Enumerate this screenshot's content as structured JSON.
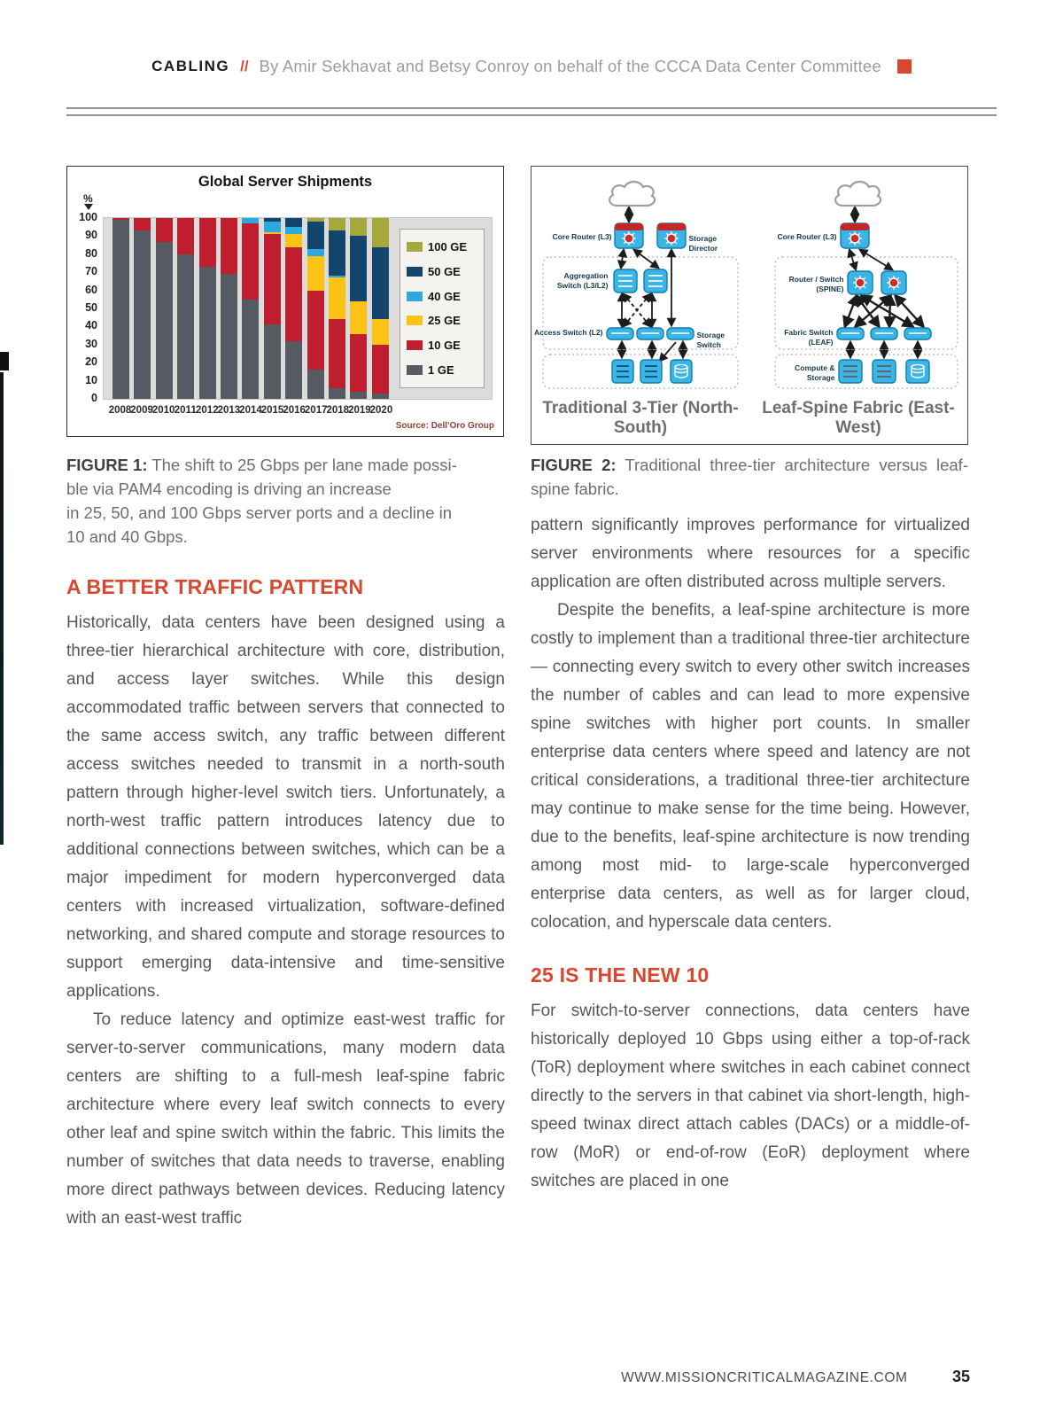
{
  "colors": {
    "accent": "#d9472f",
    "body_text": "#55565a"
  },
  "header": {
    "kicker": "CABLING",
    "slashes": "//",
    "byline": "By Amir Sekhavat and Betsy Conroy on behalf of the CCCA Data Center Committee"
  },
  "chart_data": {
    "type": "bar",
    "stacked": true,
    "title": "Global Server Shipments",
    "ylabel": "%",
    "ylim": [
      0,
      100
    ],
    "ytick_step": 10,
    "grid": false,
    "legend_position": "right",
    "categories": [
      "2008",
      "2009",
      "2010",
      "2011",
      "2012",
      "2013",
      "2014",
      "2015",
      "2016",
      "2017",
      "2018",
      "2019",
      "2020"
    ],
    "series": [
      {
        "name": "1 GE",
        "color": "#565b63",
        "values": [
          99,
          93,
          87,
          80,
          73,
          69,
          55,
          41,
          32,
          16,
          6,
          4,
          3
        ]
      },
      {
        "name": "10 GE",
        "color": "#bf1e2e",
        "values": [
          1,
          7,
          13,
          20,
          27,
          31,
          42,
          50,
          52,
          44,
          38,
          32,
          27
        ]
      },
      {
        "name": "25 GE",
        "color": "#fdc216",
        "values": [
          0,
          0,
          0,
          0,
          0,
          0,
          0,
          1,
          7,
          19,
          23,
          18,
          14
        ]
      },
      {
        "name": "40 GE",
        "color": "#2ea9e0",
        "values": [
          0,
          0,
          0,
          0,
          0,
          0,
          3,
          6,
          4,
          4,
          1,
          0,
          0
        ]
      },
      {
        "name": "50 GE",
        "color": "#14456d",
        "values": [
          0,
          0,
          0,
          0,
          0,
          0,
          0,
          2,
          5,
          15,
          25,
          36,
          40
        ]
      },
      {
        "name": "100 GE",
        "color": "#a4a83d",
        "values": [
          0,
          0,
          0,
          0,
          0,
          0,
          0,
          0,
          0,
          2,
          7,
          10,
          16
        ]
      }
    ],
    "legend_order": [
      "100 GE",
      "50 GE",
      "40 GE",
      "25 GE",
      "10 GE",
      "1 GE"
    ],
    "source": "Source: Dell'Oro Group"
  },
  "figure2": {
    "left": {
      "labels": {
        "core_router": "Core Router (L3)",
        "storage_director": "Storage Director",
        "aggregation": "Aggregation Switch (L3/L2)",
        "access": "Access Switch (L2)",
        "storage_switch": "Storage Switch"
      },
      "caption": "Traditional 3-Tier (North-South)"
    },
    "right": {
      "labels": {
        "core_router": "Core Router (L3)",
        "spine": "Router / Switch (SPINE)",
        "leaf": "Fabric Switch (LEAF)",
        "compute": "Compute & Storage"
      },
      "caption": "Leaf-Spine Fabric (East-West)"
    }
  },
  "captions": {
    "fig1_label": "FIGURE 1:",
    "fig1_text": "The shift to 25 Gbps per lane made possi-\nble via PAM4 encoding is driving an increase\nin 25, 50, and 100 Gbps server ports and a decline in\n10 and 40 Gbps.",
    "fig2_label": "FIGURE 2:",
    "fig2_text": "Traditional three-tier architecture versus leaf-spine fabric."
  },
  "article": {
    "section1_title": "A BETTER TRAFFIC PATTERN",
    "left_paragraphs": [
      "Historically, data centers have been designed using a three-tier hierarchical architecture with core, distribution, and access layer switches. While this design accommodated traffic between servers that connected to the same access switch, any traffic between different access switches needed to transmit in a north-south pattern through higher-level switch tiers. Unfortunately, a north-west traffic pattern introduces latency due to additional connections between switches, which can be a major impediment for modern hyperconverged data centers with increased virtualization, software-defined networking, and shared compute and storage resources to support emerging data-intensive and time-sensitive applications.",
      "To reduce latency and optimize east-west traffic for server-to-server communications, many modern data centers are shifting to a full-mesh leaf-spine fabric architecture where every leaf switch connects to every other leaf and spine switch within the fabric. This limits the number of switches that data needs to traverse, enabling more direct pathways between devices. Reducing latency with an east-west traffic"
    ],
    "right_paragraphs": [
      "pattern significantly improves performance for virtualized server environments where resources for a specific application are often distributed across multiple servers.",
      "Despite the benefits, a leaf-spine architecture is more costly to implement than a traditional three-tier architecture — connecting every switch to every other switch increases the number of cables and can lead to more expensive spine switches with higher port counts. In smaller enterprise data centers where speed and latency are not critical considerations, a traditional three-tier architecture may continue to make sense for the time being. However, due to the benefits, leaf-spine architecture is now trending among most mid- to large-scale hyperconverged enterprise data centers, as well as for larger cloud, colocation, and hyperscale data centers."
    ],
    "section2_title": "25 IS THE NEW 10",
    "section2_paragraphs": [
      "For switch-to-server connections, data centers have historically deployed 10 Gbps using either a top-of-rack (ToR) deployment where switches in each cabinet connect directly to the servers in that cabinet via short-length, high-speed twinax direct attach cables (DACs) or a middle-of-row (MoR) or end-of-row (EoR) deployment where switches are placed in one"
    ]
  },
  "footer": {
    "url": "WWW.MISSIONCRITICALMAGAZINE.COM",
    "page": "35"
  }
}
